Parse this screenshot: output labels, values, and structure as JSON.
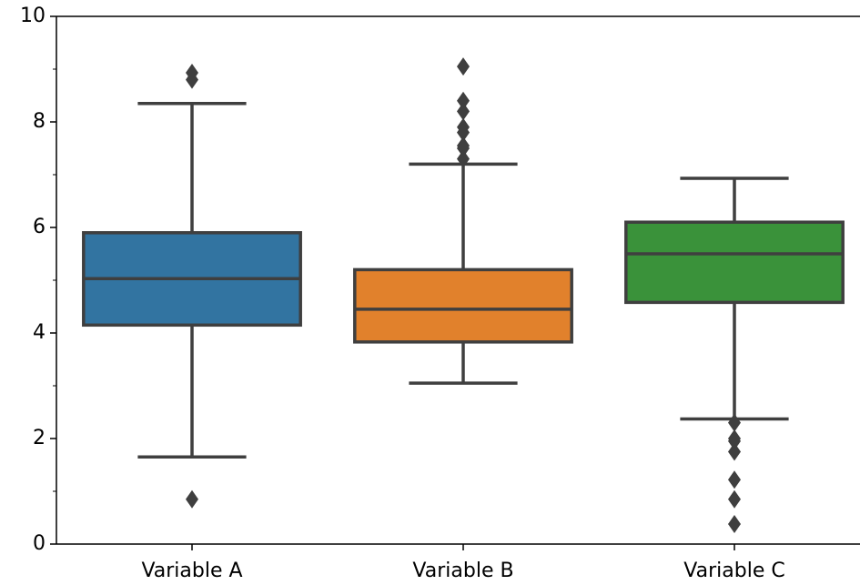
{
  "chart_data": {
    "type": "box",
    "categories": [
      "Variable A",
      "Variable B",
      "Variable C"
    ],
    "boxes": [
      {
        "whislo": 1.65,
        "q1": 4.15,
        "med": 5.03,
        "q3": 5.9,
        "whishi": 8.35,
        "fliers": [
          8.8,
          8.93,
          0.85
        ],
        "color": "#3274a1"
      },
      {
        "whislo": 3.05,
        "q1": 3.83,
        "med": 4.45,
        "q3": 5.2,
        "whishi": 7.2,
        "fliers": [
          9.05,
          8.4,
          8.2,
          7.9,
          7.8,
          7.55,
          7.5,
          7.3
        ],
        "color": "#e1812c"
      },
      {
        "whislo": 2.37,
        "q1": 4.58,
        "med": 5.5,
        "q3": 6.1,
        "whishi": 6.93,
        "fliers": [
          2.3,
          2.0,
          1.95,
          1.75,
          1.22,
          0.85,
          0.38
        ],
        "color": "#3a923a"
      }
    ],
    "line_color": "#3f3f3f",
    "ylim": [
      0,
      10
    ],
    "yticks": [
      0,
      2,
      4,
      6,
      8,
      10
    ],
    "yminorticks": [
      1,
      3,
      5,
      7,
      9
    ]
  }
}
